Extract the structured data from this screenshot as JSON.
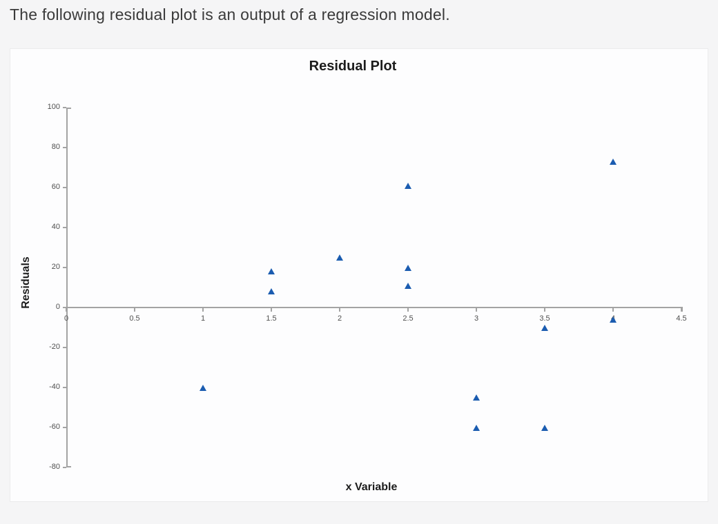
{
  "heading": {
    "text": "The following residual plot is an output of a regression model."
  },
  "chart_data": {
    "type": "scatter",
    "title": "Residual Plot",
    "xlabel": "x Variable",
    "ylabel": "Residuals",
    "xlim": [
      0,
      4.5
    ],
    "ylim": [
      -80,
      100
    ],
    "x_ticks": [
      0,
      0.5,
      1,
      1.5,
      2,
      2.5,
      3,
      3.5,
      4,
      4.5
    ],
    "x_tick_labels": [
      "0",
      "0.5",
      "1",
      "1.5",
      "2",
      "2.5",
      "3",
      "3.5",
      "4",
      "4.5"
    ],
    "y_ticks": [
      100,
      80,
      60,
      40,
      20,
      0,
      -20,
      -40,
      -60,
      -80
    ],
    "y_tick_labels": [
      "100",
      "80",
      "60",
      "40",
      "20",
      "0",
      "-20",
      "-40",
      "-60",
      "-80"
    ],
    "grid": false,
    "legend_position": "none",
    "marker": {
      "shape": "triangle-up",
      "color": "#1b5cb0"
    },
    "colors": {
      "axis": "#a3a3a3",
      "tick_label": "#4f4f4f",
      "text": "#1c1c1c",
      "panel_bg": "#fdfdfe",
      "page_bg": "#f5f5f6"
    },
    "series": [
      {
        "name": "Residuals",
        "points": [
          {
            "x": 1,
            "y": -40
          },
          {
            "x": 1.5,
            "y": 8
          },
          {
            "x": 1.5,
            "y": 18
          },
          {
            "x": 2,
            "y": 25
          },
          {
            "x": 2.5,
            "y": 11
          },
          {
            "x": 2.5,
            "y": 20
          },
          {
            "x": 2.5,
            "y": 61
          },
          {
            "x": 3,
            "y": -45
          },
          {
            "x": 3,
            "y": -60
          },
          {
            "x": 3.5,
            "y": -10
          },
          {
            "x": 3.5,
            "y": -60
          },
          {
            "x": 4,
            "y": -6
          },
          {
            "x": 4,
            "y": 73
          }
        ]
      }
    ]
  }
}
